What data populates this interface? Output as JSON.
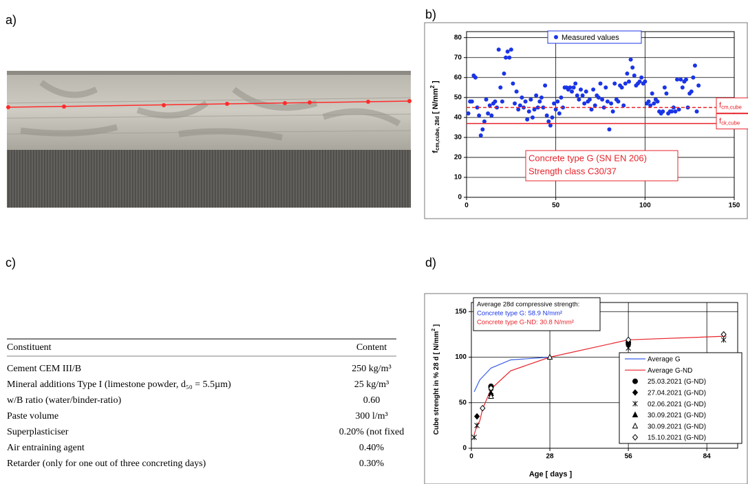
{
  "panel_labels": [
    "a)",
    "b)",
    "c)",
    "d)"
  ],
  "chart_data": [
    {
      "type": "scatter",
      "ylabel": [
        {
          "text": "f"
        },
        {
          "text": "cm,cube, 28d",
          "shift": "sub"
        },
        {
          "text": " [ N/mm"
        },
        {
          "text": "2",
          "shift": "sup"
        },
        {
          "text": " ]"
        }
      ],
      "legend": "Measured values",
      "color": "#1a35e6",
      "annotation": [
        "Concrete type G (SN EN 206)",
        "Strength class C30/37"
      ],
      "hlines": [
        {
          "value": 45,
          "style": "dashed",
          "label": [
            {
              "text": "f"
            },
            {
              "text": "cm,cube",
              "shift": "sub"
            }
          ]
        },
        {
          "value": 37,
          "style": "solid",
          "label": [
            {
              "text": "f"
            },
            {
              "text": "ck,cube",
              "shift": "sub"
            }
          ]
        }
      ],
      "xlim": [
        0,
        150
      ],
      "ylim": [
        0,
        83
      ],
      "xticks": [
        0,
        50,
        100,
        150
      ],
      "yticks": [
        0,
        10,
        20,
        30,
        40,
        50,
        60,
        70,
        80
      ],
      "grid": true,
      "x": [
        1,
        2,
        3,
        4,
        5,
        6,
        7,
        8,
        9,
        10,
        11,
        12,
        13,
        14,
        15,
        16,
        17,
        18,
        19,
        20,
        21,
        22,
        23,
        24,
        25,
        26,
        27,
        28,
        29,
        30,
        31,
        32,
        33,
        34,
        35,
        36,
        37,
        38,
        39,
        40,
        41,
        42,
        43,
        44,
        45,
        46,
        47,
        48,
        49,
        50,
        51,
        52,
        53,
        54,
        55,
        56,
        57,
        58,
        59,
        60,
        61,
        62,
        63,
        64,
        65,
        66,
        67,
        68,
        69,
        70,
        71,
        72,
        73,
        74,
        75,
        76,
        77,
        78,
        79,
        80,
        81,
        82,
        83,
        84,
        85,
        86,
        87,
        88,
        89,
        90,
        91,
        92,
        93,
        94,
        95,
        96,
        97,
        98,
        99,
        100,
        101,
        102,
        103,
        104,
        105,
        106,
        107,
        108,
        109,
        110,
        111,
        112,
        113,
        114,
        115,
        116,
        117,
        118,
        119,
        120,
        121,
        122,
        123,
        124,
        125,
        126,
        127,
        128,
        129,
        130
      ],
      "values": [
        42,
        48,
        48,
        61,
        60,
        45,
        41,
        31,
        34,
        38,
        49,
        42,
        46,
        41,
        47,
        48,
        45,
        74,
        55,
        48,
        62,
        70,
        73,
        70,
        74,
        57,
        47,
        53,
        44,
        46,
        50,
        45,
        48,
        39,
        43,
        49,
        40,
        44,
        51,
        45,
        48,
        50,
        45,
        56,
        41,
        38,
        36,
        40,
        47,
        44,
        48,
        42,
        50,
        45,
        55,
        55,
        54,
        55,
        53,
        55,
        57,
        51,
        49,
        54,
        51,
        47,
        53,
        48,
        49,
        44,
        54,
        46,
        51,
        50,
        57,
        49,
        45,
        55,
        48,
        34,
        47,
        43,
        57,
        49,
        48,
        56,
        55,
        46,
        57,
        62,
        58,
        69,
        65,
        61,
        56,
        57,
        58,
        60,
        57,
        58,
        47,
        48,
        46,
        52,
        47,
        49,
        48,
        43,
        42,
        43,
        55,
        52,
        42,
        43,
        43,
        45,
        43,
        59,
        44,
        59,
        55,
        58,
        59,
        45,
        52,
        53,
        60,
        66,
        43,
        56
      ]
    },
    {
      "type": "line",
      "xlabel": "Age [ days ]",
      "ylabel": [
        {
          "text": "Cube strenght in % 28 d [ N/mm"
        },
        {
          "text": "2",
          "shift": "sup"
        },
        {
          "text": " ]"
        }
      ],
      "annotation": [
        {
          "text": "Average 28d compressive strength:",
          "color": "#000000"
        },
        {
          "text": "Concrete type G:      58.9 N/mm²",
          "color": "#1a35e6"
        },
        {
          "text": "Concrete type G-ND: 30.8 N/mm²",
          "color": "#e8232a"
        }
      ],
      "xlim": [
        0,
        95
      ],
      "ylim": [
        0,
        160
      ],
      "xticks": [
        0,
        28,
        56,
        84
      ],
      "yticks": [
        0,
        50,
        100,
        150
      ],
      "grid": true,
      "series": [
        {
          "name": "Average G",
          "color": "#3a5ee8",
          "marker": "none",
          "x": [
            1,
            3,
            7,
            14,
            28
          ],
          "values": [
            62,
            75,
            88,
            97,
            100
          ]
        },
        {
          "name": "Average G-ND",
          "color": "#e8232a",
          "marker": "none",
          "x": [
            1,
            2,
            3,
            4,
            7,
            14,
            28,
            56,
            91
          ],
          "values": [
            15,
            25,
            30,
            43,
            65,
            85,
            100,
            119,
            123
          ]
        },
        {
          "name": "25.03.2021 (G-ND)",
          "color": "#000000",
          "marker": "circle",
          "x": [
            7,
            56
          ],
          "values": [
            68,
            116
          ]
        },
        {
          "name": "27.04.2021 (G-ND)",
          "color": "#000000",
          "marker": "diamond",
          "x": [
            2,
            7,
            56
          ],
          "values": [
            35,
            67,
            114
          ]
        },
        {
          "name": "02.06.2021 (G-ND)",
          "color": "#000000",
          "marker": "asterisk",
          "x": [
            1,
            2,
            7,
            56,
            90
          ],
          "values": [
            12,
            25,
            62,
            110,
            119
          ]
        },
        {
          "name": "30.09.2021 (G-ND)",
          "color": "#000000",
          "marker": "triangle",
          "x": [
            7
          ],
          "values": [
            60
          ]
        },
        {
          "name": "30.09.2021 (G-ND)",
          "color": "#000000",
          "marker": "triangle-open",
          "x": [
            7,
            28
          ],
          "values": [
            57,
            100
          ]
        },
        {
          "name": "15.10.2021 (G-ND)",
          "color": "#000000",
          "marker": "diamond-open",
          "x": [
            4,
            7,
            56,
            90
          ],
          "values": [
            44,
            66,
            119,
            125
          ]
        }
      ]
    }
  ],
  "table": {
    "header": [
      "Constituent",
      "Content"
    ],
    "rows": [
      [
        "Cement CEM III/B",
        "250 kg/m³"
      ],
      [
        "Mineral additions Type I (limestone powder, d₅₀ = 5.5µm)",
        "25 kg/m³"
      ],
      [
        "w/B ratio (water/binder-ratio)",
        "0.60"
      ],
      [
        "Paste volume",
        "300 l/m³"
      ],
      [
        "Superplasticiser",
        "0.20% (not fixed"
      ],
      [
        "Air entraining agent",
        "0.40%"
      ],
      [
        "Retarder (only for one out of three concreting days)",
        "0.30%"
      ]
    ]
  }
}
